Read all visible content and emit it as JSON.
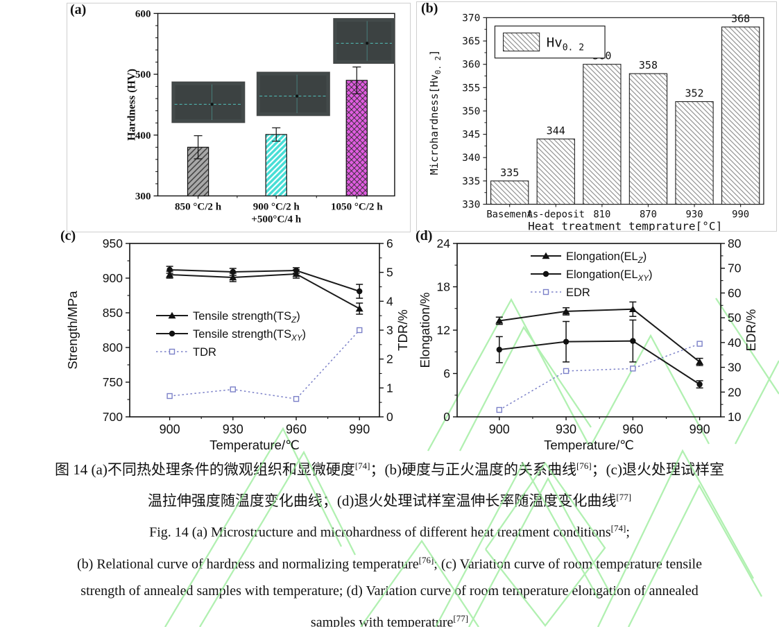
{
  "figure": {
    "panels": [
      {
        "letter": "(a)"
      },
      {
        "letter": "(b)"
      },
      {
        "letter": "(c)"
      },
      {
        "letter": "(d)"
      }
    ]
  },
  "colors": {
    "axis": "#111111",
    "panel_border": "#cfcfcf",
    "bar_gray": "#a8a8a8",
    "bar_cyan": "#46ded6",
    "bar_magenta": "#e05ce0",
    "hatch_gray": "#8a8a8a",
    "tdr_line": "#7b80c8",
    "watermark": "#97ec97",
    "micrograph_bg": "#3c4242",
    "micrograph_cross": "#57d8cf"
  },
  "chart_data": [
    {
      "id": "a",
      "type": "bar",
      "ylabel": "Hardness (HV)",
      "ylim": [
        300,
        600
      ],
      "yticks": [
        300,
        400,
        500,
        600
      ],
      "ytick_minor_step": 20,
      "categories": [
        [
          "850 °C/2 h"
        ],
        [
          "900 °C/2 h",
          "+500°C/4 h"
        ],
        [
          "1050 °C/2 h"
        ]
      ],
      "values": [
        380,
        401,
        490
      ],
      "errors": [
        19,
        11,
        22
      ],
      "bar_styles": [
        "gray-slash",
        "cyan-slash",
        "magenta-cross"
      ],
      "insets": [
        {
          "name": "micrograph-850C"
        },
        {
          "name": "micrograph-900C-500C"
        },
        {
          "name": "micrograph-1050C"
        }
      ]
    },
    {
      "id": "b",
      "type": "bar",
      "ylabel_main": "Microhardness[Hv",
      "ylabel_sub": "0. 2",
      "ylabel_end": "]",
      "xlabel": "Heat treatment temprature[°C]",
      "ylim": [
        330,
        370
      ],
      "ytick_step": 5,
      "ytick_minor_step": 2.5,
      "categories": [
        "Basement",
        "As-deposit",
        "810",
        "870",
        "930",
        "990"
      ],
      "values": [
        335,
        344,
        360,
        358,
        352,
        368
      ],
      "legend": {
        "main": "Hv",
        "sub": "0. 2"
      }
    },
    {
      "id": "c",
      "type": "line",
      "xlabel": "Temperature/℃",
      "x_categories": [
        "900",
        "930",
        "960",
        "990"
      ],
      "left_axis": {
        "label": "Strength/MPa",
        "lim": [
          700,
          950
        ],
        "tick_step": 50,
        "minor_step": 25
      },
      "right_axis": {
        "label": "TDR/%",
        "lim": [
          0,
          6
        ],
        "tick_step": 1,
        "minor_step": 0.5
      },
      "series": [
        {
          "name_main": "Tensile strength(TS",
          "name_sub": "Z",
          "name_end": ")",
          "axis": "left",
          "marker": "triangle",
          "linestyle": "solid",
          "color": "#1a1a1a",
          "values": [
            905,
            901,
            906,
            856
          ],
          "errors": [
            5,
            6,
            6,
            8
          ]
        },
        {
          "name_main": "Tensile strength(TS",
          "name_sub": "XY",
          "name_end": ")",
          "axis": "left",
          "marker": "circle",
          "linestyle": "solid",
          "color": "#1a1a1a",
          "values": [
            912,
            909,
            911,
            881
          ],
          "errors": [
            5,
            5,
            4,
            10
          ]
        },
        {
          "name_main": "TDR",
          "name_sub": "",
          "name_end": "",
          "axis": "right",
          "marker": "square-open",
          "linestyle": "dotted",
          "color": "#7b80c8",
          "values": [
            0.72,
            0.95,
            0.62,
            3.0
          ],
          "errors": null
        }
      ]
    },
    {
      "id": "d",
      "type": "line",
      "xlabel": "Temperature/℃",
      "x_categories": [
        "900",
        "930",
        "960",
        "990"
      ],
      "left_axis": {
        "label": "Elongation/%",
        "lim": [
          0,
          24
        ],
        "tick_step": 6,
        "minor_step": 3
      },
      "right_axis": {
        "label": "EDR/%",
        "lim": [
          10,
          80
        ],
        "tick_step": 10,
        "minor_step": 5
      },
      "series": [
        {
          "name_main": "Elongation(EL",
          "name_sub": "Z",
          "name_end": ")",
          "axis": "left",
          "marker": "triangle",
          "linestyle": "solid",
          "color": "#1a1a1a",
          "values": [
            13.3,
            14.6,
            14.9,
            7.6
          ],
          "errors": [
            0.5,
            0.5,
            1.0,
            0.5
          ]
        },
        {
          "name_main": "Elongation(EL",
          "name_sub": "XY",
          "name_end": ")",
          "axis": "left",
          "marker": "circle",
          "linestyle": "solid",
          "color": "#1a1a1a",
          "values": [
            9.3,
            10.4,
            10.5,
            4.5
          ],
          "errors": [
            1.8,
            2.8,
            2.9,
            0.5
          ]
        },
        {
          "name_main": "EDR",
          "name_sub": "",
          "name_end": "",
          "axis": "right",
          "marker": "square-open",
          "linestyle": "dotted",
          "color": "#7b80c8",
          "values": [
            12.8,
            28.5,
            29.5,
            39.5
          ],
          "errors": null
        }
      ]
    }
  ],
  "caption": {
    "lines": [
      {
        "lang": "zh",
        "segments": [
          {
            "t": "图 14 (a)不同热处理条件的微观组织和显微硬度"
          },
          {
            "t": "[74]",
            "sup": true
          },
          {
            "t": "；(b)硬度与正火温度的关系曲线"
          },
          {
            "t": "[76]",
            "sup": true
          },
          {
            "t": "；(c)退火处理试样室"
          }
        ]
      },
      {
        "lang": "zh",
        "segments": [
          {
            "t": "温拉伸强度随温度变化曲线；(d)退火处理试样室温伸长率随温度变化曲线"
          },
          {
            "t": "[77]",
            "sup": true
          }
        ]
      },
      {
        "lang": "en",
        "segments": [
          {
            "t": "Fig. 14 (a) Microstructure and microhardness of different heat treatment conditions"
          },
          {
            "t": "[74]",
            "sup": true
          },
          {
            "t": ";"
          }
        ]
      },
      {
        "lang": "en",
        "segments": [
          {
            "t": "(b) Relational curve of hardness and normalizing temperature"
          },
          {
            "t": "[76]",
            "sup": true
          },
          {
            "t": "; (c) Variation curve of room temperature tensile"
          }
        ]
      },
      {
        "lang": "en",
        "segments": [
          {
            "t": "strength of annealed samples with temperature; (d) Variation curve of room temperature elongation of annealed"
          }
        ]
      },
      {
        "lang": "en",
        "segments": [
          {
            "t": "samples with temperature"
          },
          {
            "t": "[77]",
            "sup": true
          }
        ]
      }
    ]
  }
}
